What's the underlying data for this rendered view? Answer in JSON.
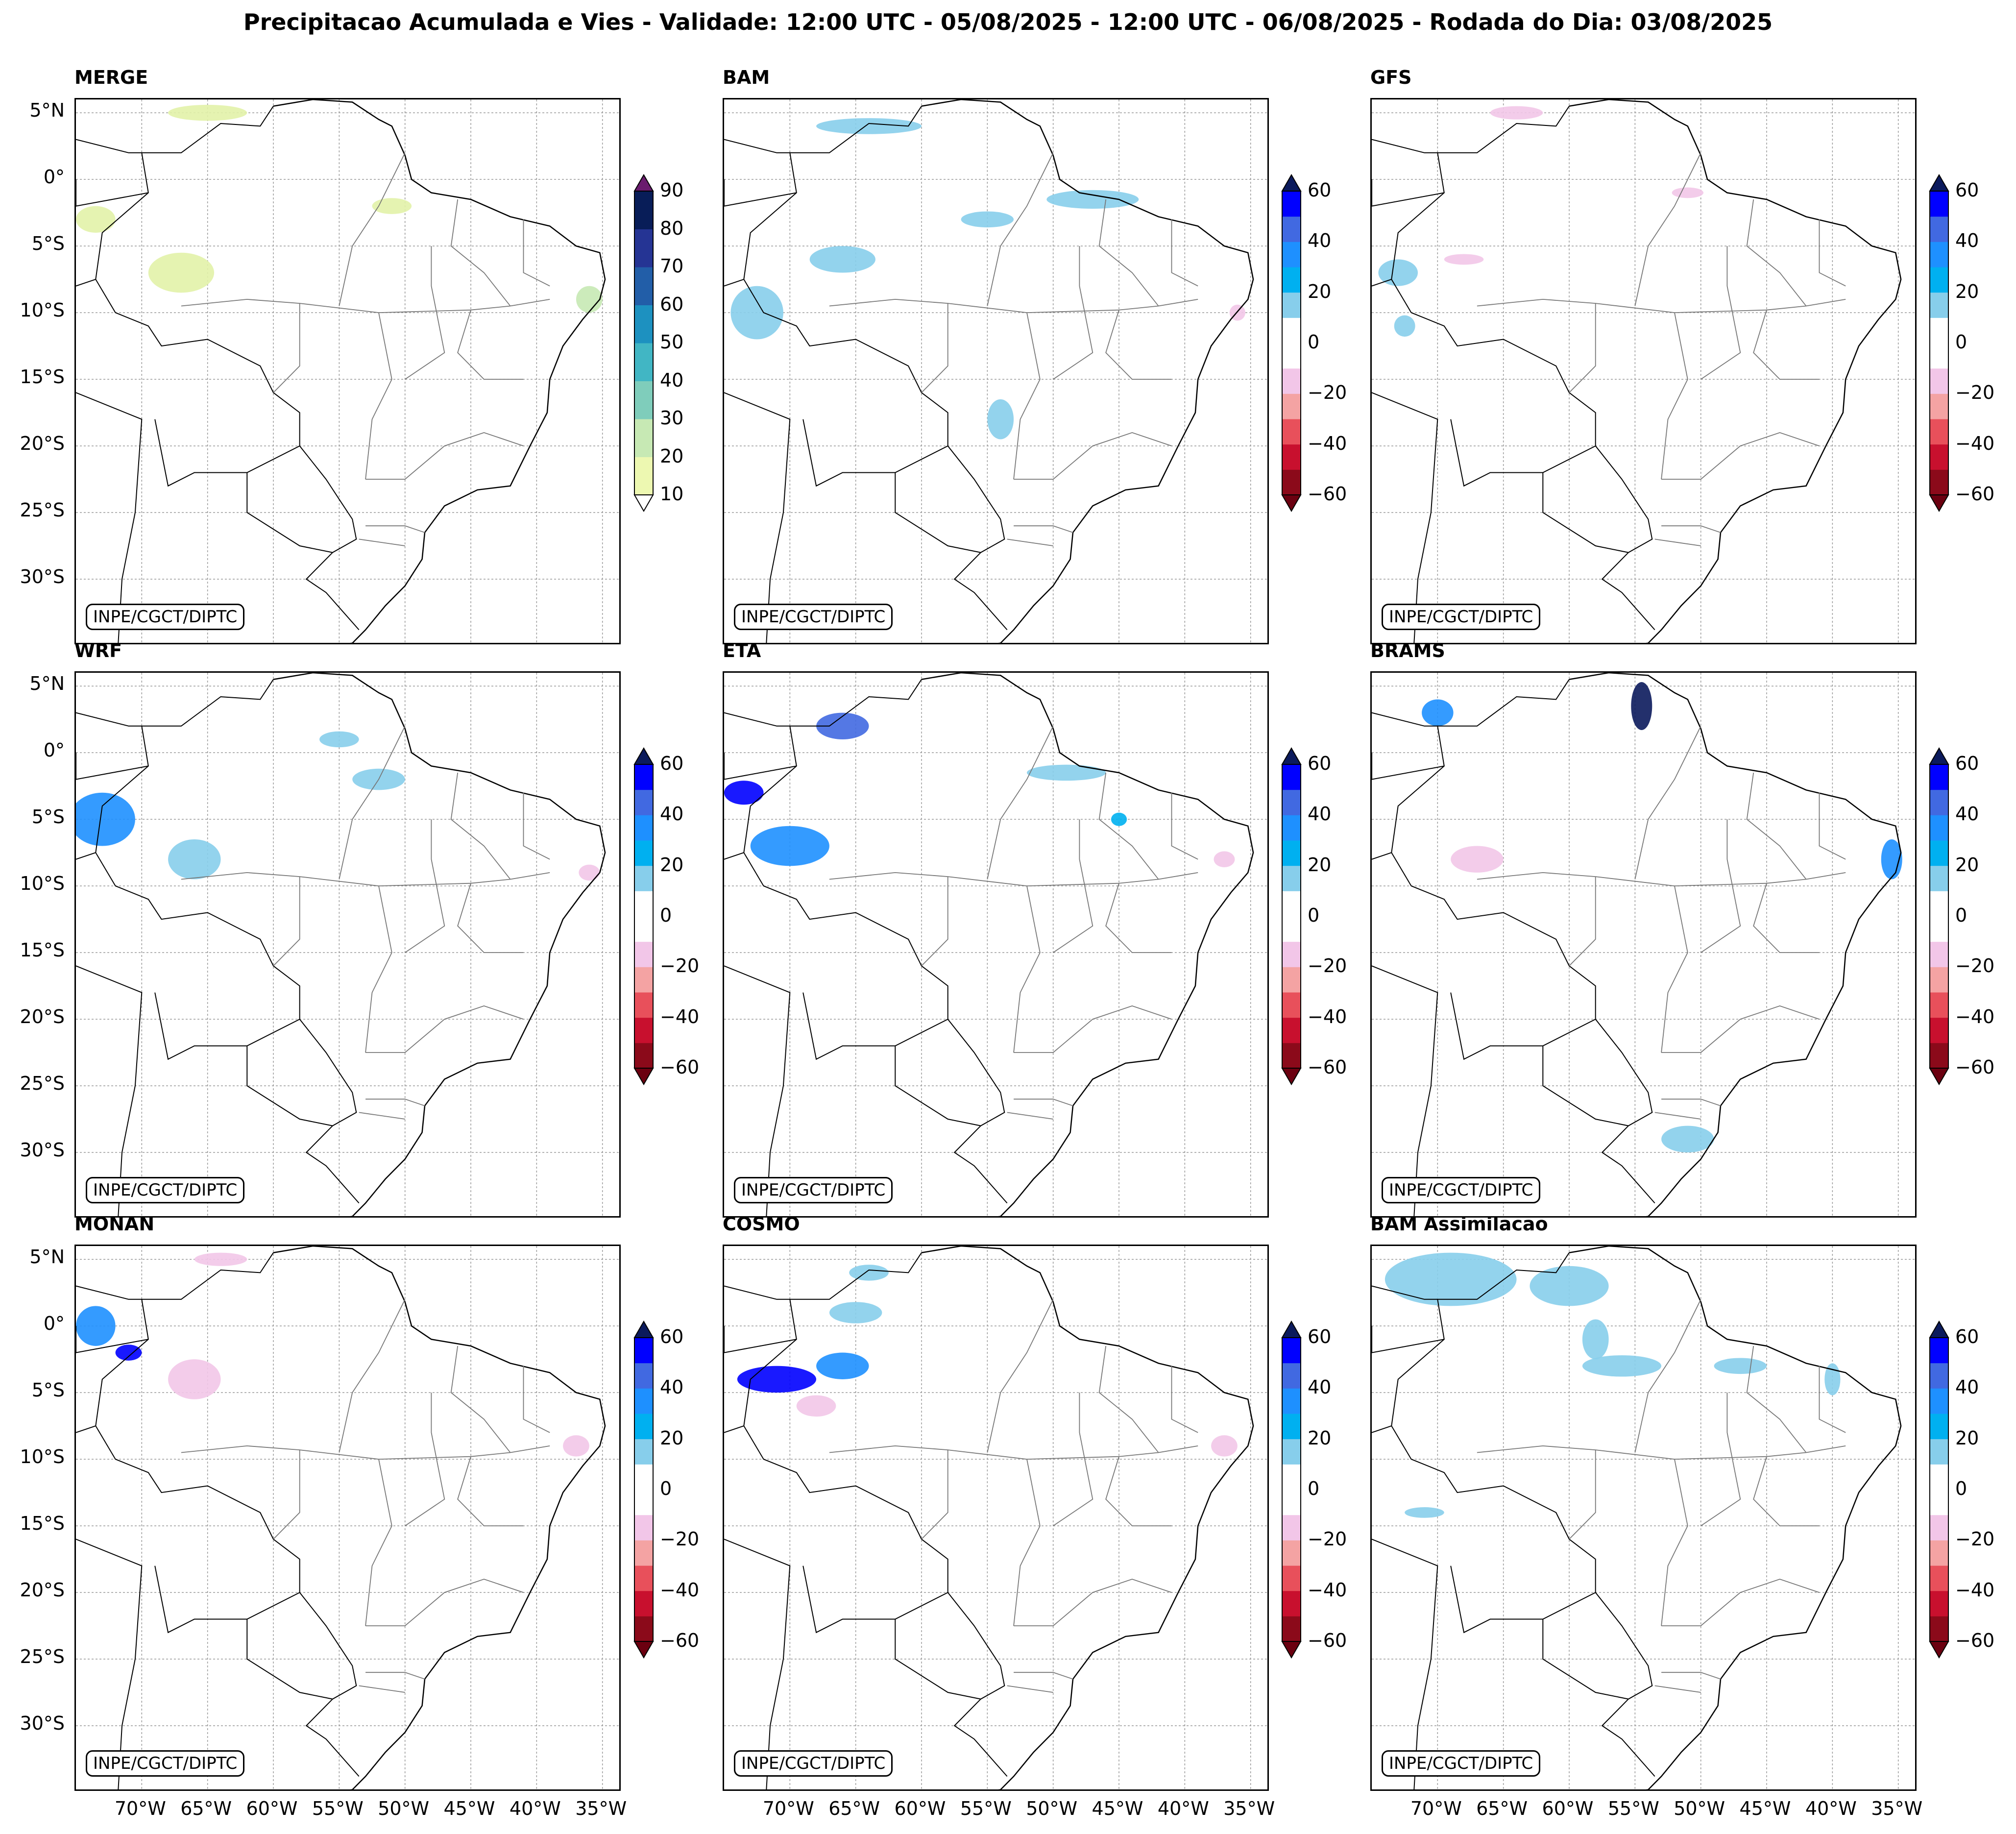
{
  "title": "Precipitacao Acumulada e Vies - Validade: 12:00 UTC - 05/08/2025 - 12:00 UTC - 06/08/2025 - Rodada do Dia: 03/08/2025",
  "credit": "INPE/CGCT/DIPTC",
  "lat_labels": [
    "5°N",
    "0°",
    "5°S",
    "10°S",
    "15°S",
    "20°S",
    "25°S",
    "30°S"
  ],
  "lon_labels": [
    "70°W",
    "65°W",
    "60°W",
    "55°W",
    "50°W",
    "45°W",
    "40°W",
    "35°W"
  ],
  "panels": [
    {
      "name": "MERGE",
      "type": "precip"
    },
    {
      "name": "BAM",
      "type": "bias"
    },
    {
      "name": "GFS",
      "type": "bias"
    },
    {
      "name": "WRF",
      "type": "bias"
    },
    {
      "name": "ETA",
      "type": "bias"
    },
    {
      "name": "BRAMS",
      "type": "bias"
    },
    {
      "name": "MONAN",
      "type": "bias"
    },
    {
      "name": "COSMO",
      "type": "bias"
    },
    {
      "name": "BAM Assimilacao",
      "type": "bias"
    }
  ],
  "precip_scale": {
    "ticks": [
      "90",
      "80",
      "70",
      "60",
      "50",
      "40",
      "30",
      "20",
      "10"
    ],
    "colors": [
      "#edf8b1",
      "#c7e9b4",
      "#7fcdbb",
      "#41b6c4",
      "#1d91c0",
      "#225ea8",
      "#253494",
      "#081d58"
    ],
    "over_color": "#6a1b6e"
  },
  "bias_scale": {
    "ticks": [
      "60",
      "40",
      "20",
      "0",
      "−20",
      "−40",
      "−60"
    ],
    "colors": [
      "#8b0a1a",
      "#c8102e",
      "#e8505b",
      "#f4a3a3",
      "#f2c6e8",
      "#ffffff",
      "#ffffff",
      "#87ceeb",
      "#00b0f0",
      "#1e90ff",
      "#4169e1",
      "#0000ff"
    ],
    "over_color": "#0b1a5c",
    "under_color": "#6b0010"
  }
}
